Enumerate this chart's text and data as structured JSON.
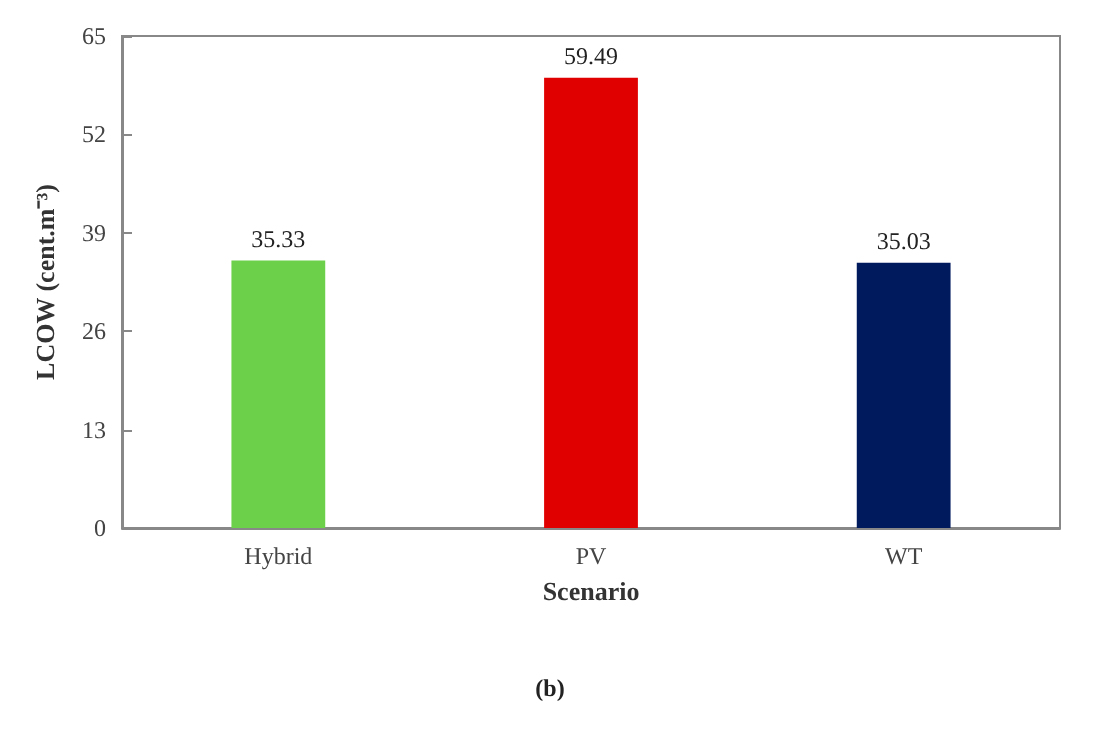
{
  "chart_data": {
    "type": "bar",
    "xlabel": "Scenario",
    "ylabel": "LCOW (cent.m⁻³)",
    "categories": [
      "Hybrid",
      "PV",
      "WT"
    ],
    "values": [
      35.33,
      59.49,
      35.03
    ],
    "colors": [
      "#6dd04a",
      "#e00000",
      "#001a5e"
    ],
    "ylim": [
      0,
      65
    ],
    "yticks": [
      0,
      13,
      26,
      39,
      52,
      65
    ],
    "grid": false,
    "data_labels": true,
    "annotations": [
      "(b)"
    ]
  }
}
